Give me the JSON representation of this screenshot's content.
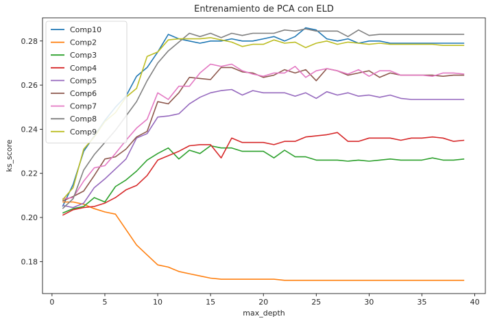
{
  "chart_data": {
    "type": "line",
    "title": "Entrenamiento de PCA con ELD",
    "xlabel": "max_depth",
    "ylabel": "ks_score",
    "xlim": [
      -0.9,
      41
    ],
    "ylim": [
      0.1655,
      0.2905
    ],
    "xticks": [
      0,
      5,
      10,
      15,
      20,
      25,
      30,
      35,
      40
    ],
    "yticks": [
      0.18,
      0.2,
      0.22,
      0.24,
      0.26,
      0.28
    ],
    "ytick_labels": [
      "0.18",
      "0.20",
      "0.22",
      "0.24",
      "0.26",
      "0.28"
    ],
    "grid": false,
    "legend_position": "upper-left",
    "x": [
      1,
      2,
      3,
      4,
      5,
      6,
      7,
      8,
      9,
      10,
      11,
      12,
      13,
      14,
      15,
      16,
      17,
      18,
      19,
      20,
      21,
      22,
      23,
      24,
      25,
      26,
      27,
      28,
      29,
      30,
      31,
      32,
      33,
      34,
      35,
      36,
      37,
      38,
      39
    ],
    "series": [
      {
        "name": "Comp10",
        "color": "#1f77b4",
        "values": [
          0.205,
          0.215,
          0.23,
          0.237,
          0.244,
          0.25,
          0.255,
          0.264,
          0.268,
          0.275,
          0.283,
          0.281,
          0.28,
          0.279,
          0.28,
          0.28,
          0.281,
          0.28,
          0.28,
          0.281,
          0.282,
          0.28,
          0.282,
          0.286,
          0.285,
          0.281,
          0.28,
          0.281,
          0.279,
          0.28,
          0.28,
          0.279,
          0.279,
          0.279,
          0.279,
          0.279,
          0.279,
          0.279,
          0.279
        ]
      },
      {
        "name": "Comp2",
        "color": "#ff7f0e",
        "values": [
          0.207,
          0.207,
          0.206,
          0.204,
          0.2025,
          0.2015,
          0.1945,
          0.1875,
          0.183,
          0.1785,
          0.1775,
          0.1755,
          0.1745,
          0.1735,
          0.1725,
          0.172,
          0.172,
          0.172,
          0.172,
          0.172,
          0.172,
          0.1715,
          0.1715,
          0.1715,
          0.1715,
          0.1715,
          0.1715,
          0.1715,
          0.1715,
          0.1715,
          0.1715,
          0.1715,
          0.1715,
          0.1715,
          0.1715,
          0.1715,
          0.1715,
          0.1715,
          0.1715
        ]
      },
      {
        "name": "Comp3",
        "color": "#2ca02c",
        "values": [
          0.202,
          0.204,
          0.205,
          0.209,
          0.207,
          0.214,
          0.217,
          0.221,
          0.226,
          0.229,
          0.2315,
          0.2265,
          0.2305,
          0.229,
          0.2325,
          0.2315,
          0.2315,
          0.23,
          0.23,
          0.23,
          0.227,
          0.2305,
          0.2275,
          0.2275,
          0.226,
          0.226,
          0.226,
          0.2255,
          0.226,
          0.2255,
          0.226,
          0.2265,
          0.226,
          0.226,
          0.226,
          0.227,
          0.226,
          0.226,
          0.2265
        ]
      },
      {
        "name": "Comp4",
        "color": "#d62728",
        "values": [
          0.201,
          0.2035,
          0.2045,
          0.205,
          0.2065,
          0.209,
          0.2125,
          0.2145,
          0.219,
          0.226,
          0.228,
          0.23,
          0.2325,
          0.233,
          0.233,
          0.227,
          0.236,
          0.234,
          0.234,
          0.234,
          0.233,
          0.2345,
          0.2345,
          0.2365,
          0.237,
          0.2375,
          0.2385,
          0.2345,
          0.2345,
          0.236,
          0.236,
          0.236,
          0.235,
          0.236,
          0.236,
          0.2365,
          0.236,
          0.2345,
          0.235
        ]
      },
      {
        "name": "Comp5",
        "color": "#9467bd",
        "values": [
          0.2055,
          0.2045,
          0.2065,
          0.2135,
          0.2175,
          0.222,
          0.2265,
          0.236,
          0.238,
          0.2455,
          0.246,
          0.247,
          0.2515,
          0.2545,
          0.2565,
          0.2575,
          0.258,
          0.2555,
          0.2575,
          0.2565,
          0.2565,
          0.2565,
          0.255,
          0.2565,
          0.254,
          0.257,
          0.2555,
          0.2565,
          0.255,
          0.2555,
          0.2545,
          0.2555,
          0.254,
          0.2535,
          0.2535,
          0.2535,
          0.2535,
          0.2535,
          0.2535
        ]
      },
      {
        "name": "Comp6",
        "color": "#8c564b",
        "values": [
          0.2075,
          0.2095,
          0.212,
          0.219,
          0.2265,
          0.2275,
          0.231,
          0.2365,
          0.239,
          0.2525,
          0.2515,
          0.2565,
          0.2635,
          0.263,
          0.2625,
          0.268,
          0.268,
          0.266,
          0.2655,
          0.2635,
          0.2645,
          0.267,
          0.2655,
          0.267,
          0.262,
          0.2675,
          0.2665,
          0.2645,
          0.2655,
          0.2665,
          0.2635,
          0.2655,
          0.2645,
          0.2645,
          0.2645,
          0.2645,
          0.264,
          0.2645,
          0.2645
        ]
      },
      {
        "name": "Comp7",
        "color": "#e377c2",
        "values": [
          0.2085,
          0.209,
          0.2165,
          0.2225,
          0.2235,
          0.229,
          0.235,
          0.2405,
          0.2445,
          0.2565,
          0.2535,
          0.2595,
          0.2595,
          0.2655,
          0.2695,
          0.2685,
          0.2695,
          0.2665,
          0.265,
          0.264,
          0.2655,
          0.2655,
          0.2685,
          0.2635,
          0.2665,
          0.2675,
          0.2665,
          0.265,
          0.267,
          0.264,
          0.2665,
          0.2665,
          0.2645,
          0.2645,
          0.2645,
          0.264,
          0.2655,
          0.2655,
          0.265
        ]
      },
      {
        "name": "Comp8",
        "color": "#7f7f7f",
        "values": [
          0.204,
          0.2085,
          0.2215,
          0.2285,
          0.234,
          0.2395,
          0.246,
          0.2525,
          0.262,
          0.27,
          0.2755,
          0.2795,
          0.2835,
          0.282,
          0.2835,
          0.2815,
          0.2835,
          0.2825,
          0.2835,
          0.2835,
          0.2835,
          0.285,
          0.2845,
          0.2855,
          0.2845,
          0.2845,
          0.2845,
          0.282,
          0.285,
          0.2825,
          0.283,
          0.283,
          0.283,
          0.283,
          0.283,
          0.283,
          0.283,
          0.283,
          0.283
        ]
      },
      {
        "name": "Comp9",
        "color": "#bcbd22",
        "values": [
          0.208,
          0.2135,
          0.231,
          0.2365,
          0.2435,
          0.2475,
          0.2545,
          0.2585,
          0.273,
          0.275,
          0.2805,
          0.281,
          0.281,
          0.281,
          0.2815,
          0.2805,
          0.2795,
          0.2775,
          0.2785,
          0.2785,
          0.2805,
          0.279,
          0.2795,
          0.277,
          0.279,
          0.28,
          0.2785,
          0.2795,
          0.279,
          0.2785,
          0.279,
          0.2785,
          0.2785,
          0.2785,
          0.2785,
          0.2785,
          0.278,
          0.278,
          0.278
        ]
      }
    ]
  }
}
